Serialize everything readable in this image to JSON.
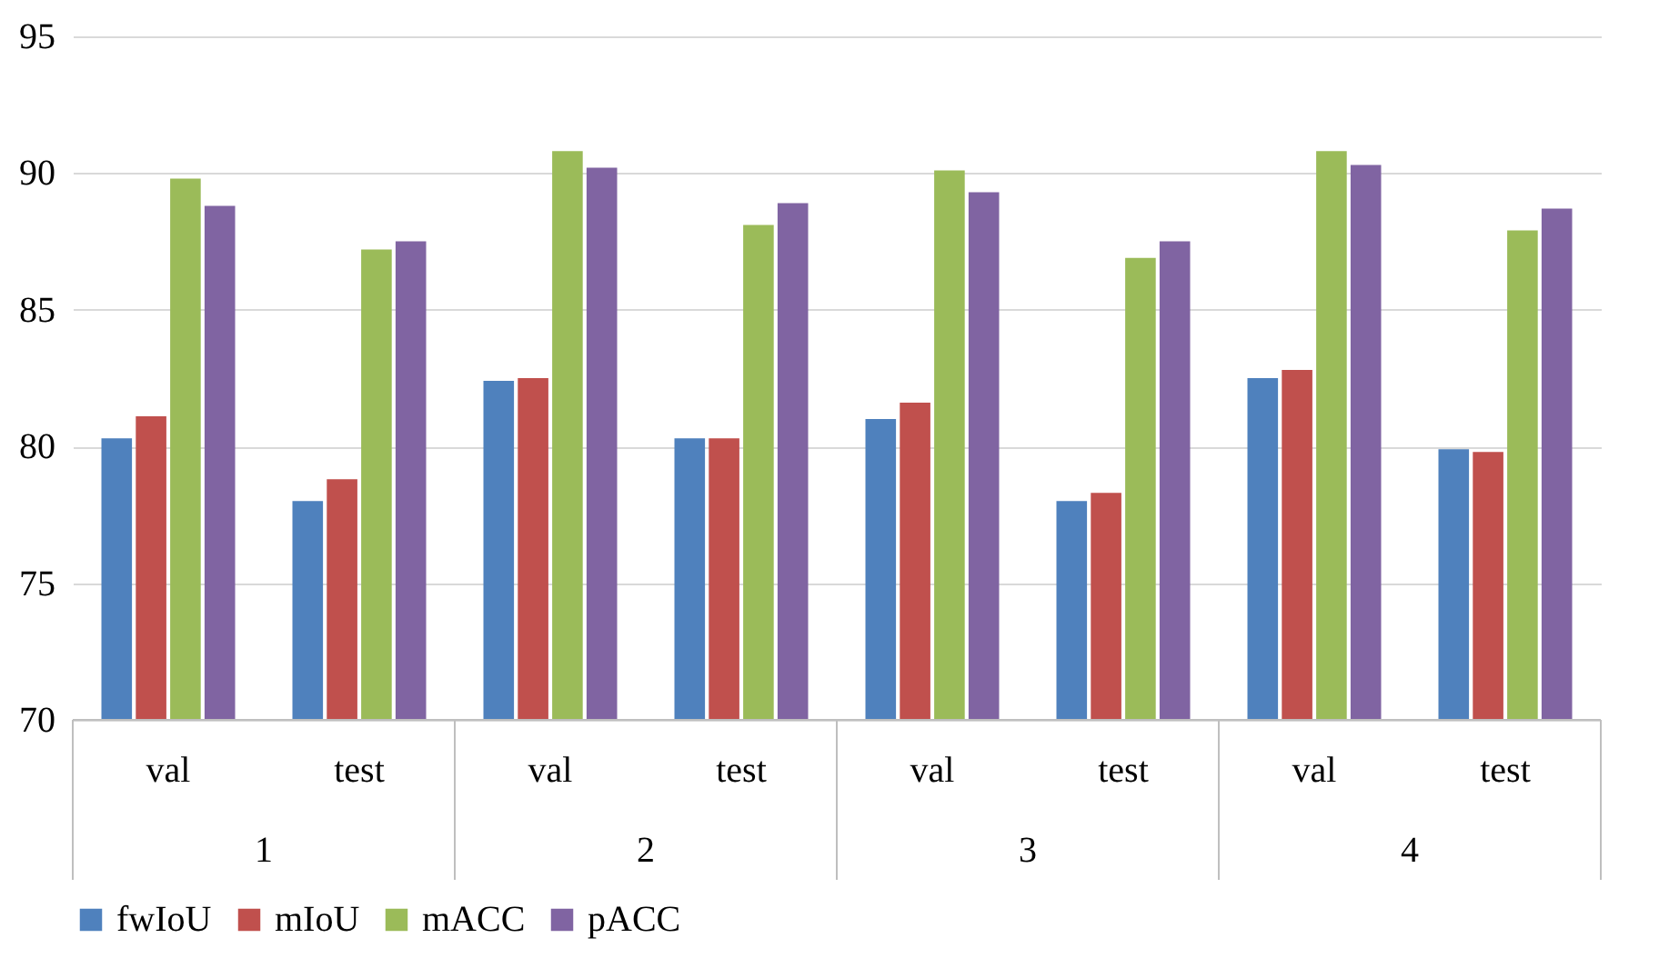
{
  "chart_data": {
    "type": "bar",
    "categories": [
      "val",
      "test",
      "val",
      "test",
      "val",
      "test",
      "val",
      "test"
    ],
    "annotations": [
      "1",
      "2",
      "3",
      "4"
    ],
    "series": [
      {
        "name": "fwIoU",
        "color": "#4f81bd",
        "values": [
          80.3,
          78.0,
          82.4,
          80.3,
          81.0,
          78.0,
          82.5,
          79.9
        ]
      },
      {
        "name": "mIoU",
        "color": "#c0504d",
        "values": [
          81.1,
          78.8,
          82.5,
          80.3,
          81.6,
          78.3,
          82.8,
          79.8
        ]
      },
      {
        "name": "mACC",
        "color": "#9bbb59",
        "values": [
          89.8,
          87.2,
          90.8,
          88.1,
          90.1,
          86.9,
          90.8,
          87.9
        ]
      },
      {
        "name": "pACC",
        "color": "#8064a2",
        "values": [
          88.8,
          87.5,
          90.2,
          88.9,
          89.3,
          87.5,
          90.3,
          88.7
        ]
      }
    ],
    "ylim": [
      70,
      95
    ],
    "yticks": [
      70,
      75,
      80,
      85,
      90,
      95
    ],
    "grid": "y",
    "legend": "bottom"
  }
}
